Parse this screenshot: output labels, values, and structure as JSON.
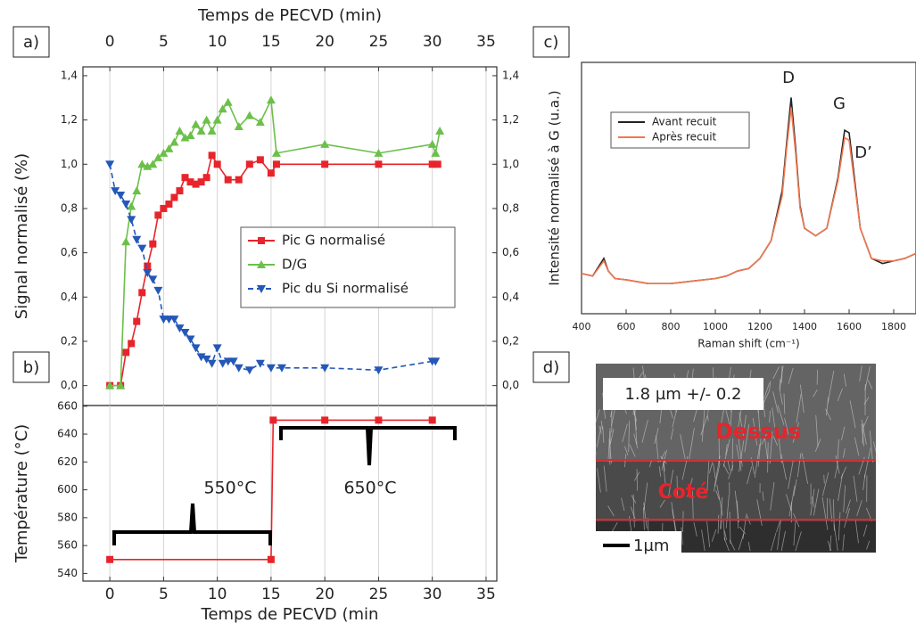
{
  "chart_data": [
    {
      "type": "line",
      "panel_label": "a)",
      "xlabel": "Temps de PECVD (min)",
      "ylabel": "Signal normalisé (%)",
      "xaxis_position": "top",
      "mirror_y": true,
      "grid": "x",
      "xlim": [
        -2.5,
        36
      ],
      "xticks": [
        0,
        5,
        10,
        15,
        20,
        25,
        30,
        35
      ],
      "ylim": [
        -0.09,
        1.44
      ],
      "yticks": [
        {
          "value": 0,
          "label": "0,0"
        },
        {
          "value": 0.2,
          "label": "0,2"
        },
        {
          "value": 0.4,
          "label": "0,4"
        },
        {
          "value": 0.6,
          "label": "0,6"
        },
        {
          "value": 0.8,
          "label": "0,8"
        },
        {
          "value": 1.0,
          "label": "1,0"
        },
        {
          "value": 1.2,
          "label": "1,2"
        },
        {
          "value": 1.4,
          "label": "1,4"
        }
      ],
      "series": [
        {
          "name": "Pic G normalisé",
          "color": "#e8242b",
          "marker": "square",
          "dash": false,
          "x": [
            0,
            1,
            1.5,
            2,
            2.5,
            3,
            3.5,
            4,
            4.5,
            5,
            5.5,
            6,
            6.5,
            7,
            7.5,
            8,
            8.5,
            9,
            9.5,
            10,
            11,
            12,
            13,
            14,
            15,
            15.5,
            20,
            25,
            30,
            30.5
          ],
          "values": [
            0,
            0,
            0.15,
            0.19,
            0.29,
            0.42,
            0.54,
            0.64,
            0.77,
            0.8,
            0.82,
            0.85,
            0.88,
            0.94,
            0.92,
            0.91,
            0.92,
            0.94,
            1.04,
            1.0,
            0.93,
            0.93,
            1.0,
            1.02,
            0.96,
            1.0,
            1.0,
            1.0,
            1.0,
            1.0
          ]
        },
        {
          "name": "D/G",
          "color": "#6cc04a",
          "marker": "triangle-up",
          "dash": false,
          "x": [
            0,
            1,
            1.5,
            2,
            2.5,
            3,
            3.5,
            4,
            4.5,
            5,
            5.5,
            6,
            6.5,
            7,
            7.5,
            8,
            8.5,
            9,
            9.5,
            10,
            10.5,
            11,
            12,
            13,
            14,
            15,
            15.5,
            20,
            25,
            30,
            30.3,
            30.7
          ],
          "values": [
            0,
            0,
            0.65,
            0.81,
            0.88,
            1.0,
            0.99,
            1.0,
            1.03,
            1.05,
            1.07,
            1.1,
            1.15,
            1.12,
            1.13,
            1.18,
            1.15,
            1.2,
            1.15,
            1.2,
            1.25,
            1.28,
            1.17,
            1.22,
            1.19,
            1.29,
            1.05,
            1.09,
            1.05,
            1.09,
            1.05,
            1.15
          ]
        },
        {
          "name": "Pic du Si normalisé",
          "color": "#2458b8",
          "marker": "triangle-down",
          "dash": true,
          "x": [
            0,
            0.5,
            1,
            1.5,
            2,
            2.5,
            3,
            3.5,
            4,
            4.5,
            5,
            5.5,
            6,
            6.5,
            7,
            7.5,
            8,
            8.5,
            9,
            9.5,
            10,
            10.5,
            11,
            11.5,
            12,
            13,
            14,
            15,
            16,
            20,
            25,
            30,
            30.3
          ],
          "values": [
            1.0,
            0.88,
            0.86,
            0.82,
            0.75,
            0.66,
            0.62,
            0.51,
            0.48,
            0.43,
            0.3,
            0.3,
            0.3,
            0.26,
            0.24,
            0.21,
            0.17,
            0.13,
            0.12,
            0.1,
            0.17,
            0.1,
            0.11,
            0.11,
            0.08,
            0.07,
            0.1,
            0.08,
            0.08,
            0.08,
            0.07,
            0.11,
            0.11
          ]
        }
      ]
    },
    {
      "type": "line",
      "panel_label": "b)",
      "xlabel": "Temps de PECVD (min",
      "ylabel": "Température (°C)",
      "xaxis_position": "bottom",
      "mirror_y": false,
      "grid": "x",
      "xlim": [
        -2.5,
        36
      ],
      "xticks": [
        0,
        5,
        10,
        15,
        20,
        25,
        30,
        35
      ],
      "ylim": [
        534.5,
        660.5
      ],
      "yticks": [
        540,
        560,
        580,
        600,
        620,
        640,
        660
      ],
      "annotations": [
        "550°C",
        "650°C"
      ],
      "series": [
        {
          "color": "#e8242b",
          "marker": "square",
          "dash": false,
          "x": [
            0,
            15,
            15.2,
            20,
            25,
            30
          ],
          "values": [
            550,
            550,
            650,
            650,
            650,
            650
          ]
        }
      ]
    },
    {
      "type": "line",
      "panel_label": "c)",
      "xlabel": "Raman shift (cm⁻¹)",
      "ylabel": "Intensité normalisé à G (u.a.)",
      "xaxis_position": "bottom",
      "mirror_y": false,
      "grid": "none",
      "xlim": [
        400,
        1900
      ],
      "xticks": [
        400,
        600,
        800,
        1000,
        1200,
        1400,
        1600,
        1800
      ],
      "ylim": [
        0,
        1
      ],
      "annotations": [
        "D",
        "G",
        "D’"
      ],
      "x": [
        400,
        450,
        500,
        520,
        550,
        600,
        700,
        800,
        900,
        1000,
        1050,
        1100,
        1150,
        1200,
        1250,
        1300,
        1320,
        1340,
        1360,
        1380,
        1400,
        1450,
        1500,
        1550,
        1580,
        1600,
        1620,
        1650,
        1700,
        1750,
        1800,
        1850,
        1900
      ],
      "series": [
        {
          "name": "Avant recuit",
          "color": "#222222",
          "marker": "none",
          "dash": false,
          "values": [
            0.16,
            0.15,
            0.22,
            0.17,
            0.14,
            0.135,
            0.12,
            0.12,
            0.13,
            0.14,
            0.15,
            0.17,
            0.18,
            0.22,
            0.29,
            0.49,
            0.68,
            0.86,
            0.66,
            0.43,
            0.34,
            0.31,
            0.34,
            0.54,
            0.73,
            0.72,
            0.57,
            0.34,
            0.22,
            0.2,
            0.21,
            0.22,
            0.24
          ]
        },
        {
          "name": "Après recuit",
          "color": "#f07850",
          "marker": "none",
          "dash": false,
          "values": [
            0.16,
            0.15,
            0.21,
            0.17,
            0.14,
            0.135,
            0.12,
            0.12,
            0.13,
            0.14,
            0.15,
            0.17,
            0.18,
            0.22,
            0.29,
            0.47,
            0.66,
            0.82,
            0.64,
            0.42,
            0.34,
            0.31,
            0.34,
            0.53,
            0.7,
            0.69,
            0.55,
            0.34,
            0.22,
            0.21,
            0.21,
            0.22,
            0.24
          ]
        }
      ]
    }
  ],
  "image_panel": {
    "label": "d)",
    "thickness": "1.8 µm +/- 0.2",
    "top_label": "Dessus",
    "side_label": "Coté",
    "scale_bar": "1µm"
  }
}
